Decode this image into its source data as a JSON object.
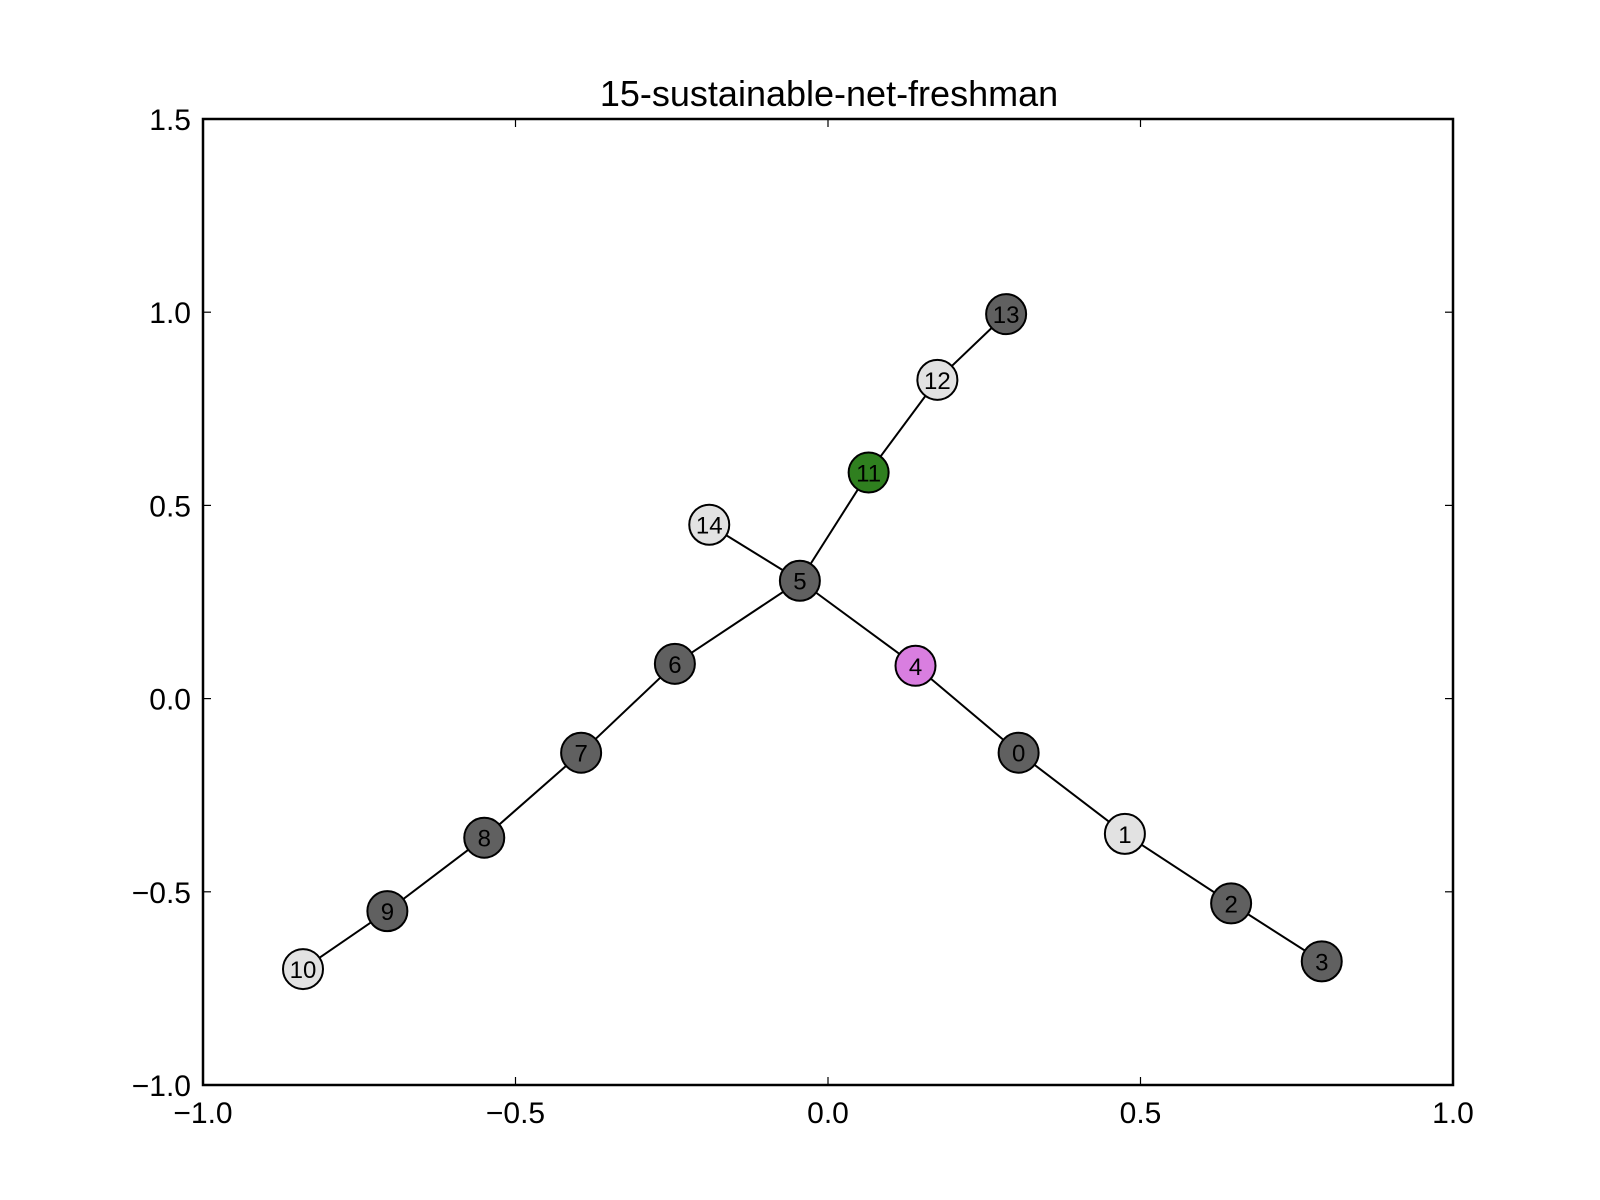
{
  "chart_data": {
    "type": "network",
    "title": "15-sustainable-net-freshman",
    "xlim": [
      -1.0,
      1.0
    ],
    "ylim": [
      -1.0,
      1.5
    ],
    "x_ticks": [
      -1.0,
      -0.5,
      0.0,
      0.5,
      1.0
    ],
    "y_ticks": [
      -1.0,
      -0.5,
      0.0,
      0.5,
      1.0,
      1.5
    ],
    "x_tick_labels": [
      "−1.0",
      "−0.5",
      "0.0",
      "0.5",
      "1.0"
    ],
    "y_tick_labels": [
      "−1.0",
      "−0.5",
      "0.0",
      "0.5",
      "1.0",
      "1.5"
    ],
    "colors": {
      "dark": "#606060",
      "light": "#e2e2e2",
      "green": "#2f7f1f",
      "pink": "#d97ee0"
    },
    "nodes": [
      {
        "id": "0",
        "label": "0",
        "x": 0.305,
        "y": -0.14,
        "color": "#606060"
      },
      {
        "id": "1",
        "label": "1",
        "x": 0.475,
        "y": -0.35,
        "color": "#e2e2e2"
      },
      {
        "id": "2",
        "label": "2",
        "x": 0.645,
        "y": -0.53,
        "color": "#606060"
      },
      {
        "id": "3",
        "label": "3",
        "x": 0.79,
        "y": -0.68,
        "color": "#606060"
      },
      {
        "id": "4",
        "label": "4",
        "x": 0.14,
        "y": 0.085,
        "color": "#d97ee0"
      },
      {
        "id": "5",
        "label": "5",
        "x": -0.045,
        "y": 0.305,
        "color": "#606060"
      },
      {
        "id": "6",
        "label": "6",
        "x": -0.245,
        "y": 0.09,
        "color": "#606060"
      },
      {
        "id": "7",
        "label": "7",
        "x": -0.395,
        "y": -0.14,
        "color": "#606060"
      },
      {
        "id": "8",
        "label": "8",
        "x": -0.55,
        "y": -0.36,
        "color": "#606060"
      },
      {
        "id": "9",
        "label": "9",
        "x": -0.705,
        "y": -0.55,
        "color": "#606060"
      },
      {
        "id": "10",
        "label": "10",
        "x": -0.84,
        "y": -0.7,
        "color": "#e2e2e2"
      },
      {
        "id": "11",
        "label": "11",
        "x": 0.065,
        "y": 0.585,
        "color": "#2f7f1f"
      },
      {
        "id": "12",
        "label": "12",
        "x": 0.175,
        "y": 0.825,
        "color": "#e2e2e2"
      },
      {
        "id": "13",
        "label": "13",
        "x": 0.285,
        "y": 0.995,
        "color": "#606060"
      },
      {
        "id": "14",
        "label": "14",
        "x": -0.19,
        "y": 0.45,
        "color": "#e2e2e2"
      }
    ],
    "edges": [
      [
        "10",
        "9"
      ],
      [
        "9",
        "8"
      ],
      [
        "8",
        "7"
      ],
      [
        "7",
        "6"
      ],
      [
        "6",
        "5"
      ],
      [
        "5",
        "11"
      ],
      [
        "11",
        "12"
      ],
      [
        "12",
        "13"
      ],
      [
        "14",
        "5"
      ],
      [
        "5",
        "4"
      ],
      [
        "4",
        "0"
      ],
      [
        "0",
        "1"
      ],
      [
        "1",
        "2"
      ],
      [
        "2",
        "3"
      ]
    ]
  }
}
